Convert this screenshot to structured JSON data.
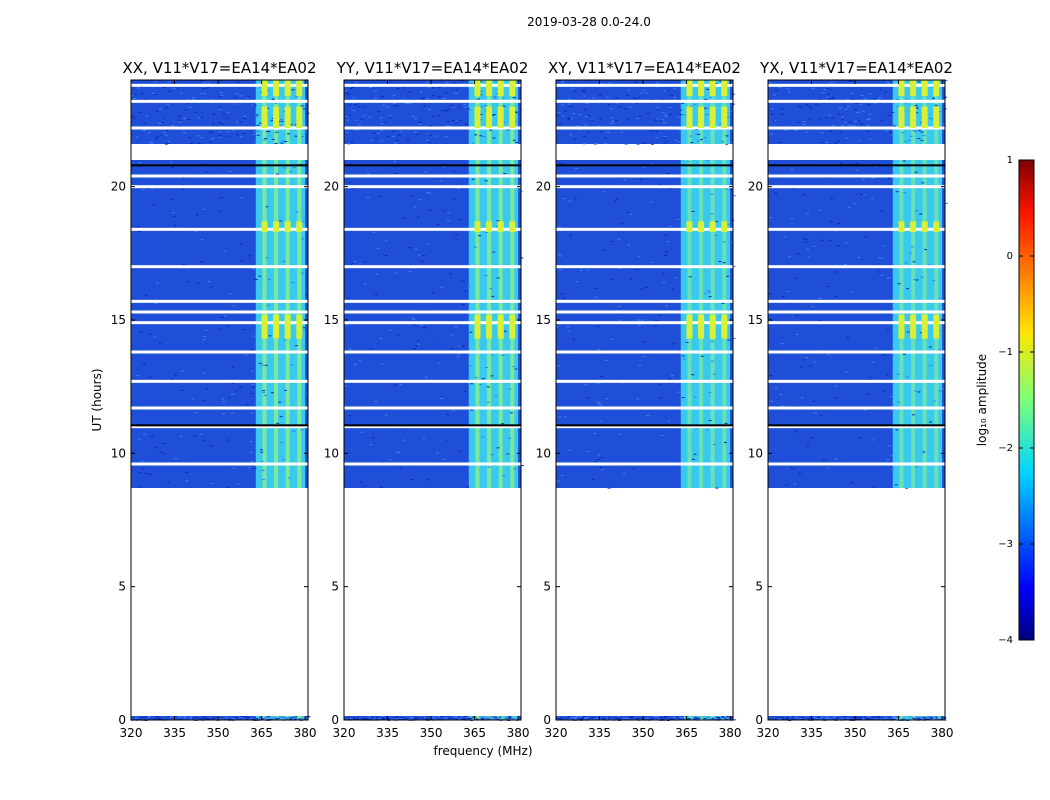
{
  "suptitle": "2019-03-28 0.0-24.0",
  "chart_data": {
    "type": "heatmap",
    "xlabel": "frequency (MHz)",
    "ylabel": "UT (hours)",
    "xlim": [
      320,
      381
    ],
    "ylim": [
      0,
      24
    ],
    "xticks": [
      "320",
      "335",
      "350",
      "365",
      "380"
    ],
    "xtick_values": [
      320,
      335,
      350,
      365,
      380
    ],
    "yticks": [
      "0",
      "5",
      "10",
      "15",
      "20"
    ],
    "ytick_values": [
      0,
      5,
      10,
      15,
      20
    ],
    "panels": [
      {
        "title": "XX, V11*V17=EA14*EA02"
      },
      {
        "title": "YY, V11*V17=EA14*EA02"
      },
      {
        "title": "XY, V11*V17=EA14*EA02"
      },
      {
        "title": "YX, V11*V17=EA14*EA02"
      }
    ],
    "data_intervals_ut": [
      [
        0.0,
        0.15
      ],
      [
        8.7,
        21.0
      ],
      [
        21.6,
        24.0
      ]
    ],
    "gap_lines_ut": [
      9.6,
      11.0,
      11.7,
      12.7,
      13.8,
      14.9,
      15.3,
      15.7,
      17.0,
      18.4,
      20.0,
      20.4,
      22.2,
      23.2,
      23.8
    ],
    "rfi_band_mhz": [
      363,
      380
    ],
    "rfi_columns_mhz": [
      366,
      370,
      374,
      378
    ],
    "colorbar": {
      "label": "log₁₀ amplitude",
      "range": [
        -4,
        1
      ],
      "ticks": [
        "1",
        "0",
        "−1",
        "−2",
        "−3",
        "−4"
      ],
      "tick_values": [
        1,
        0,
        -1,
        -2,
        -3,
        -4
      ]
    }
  }
}
